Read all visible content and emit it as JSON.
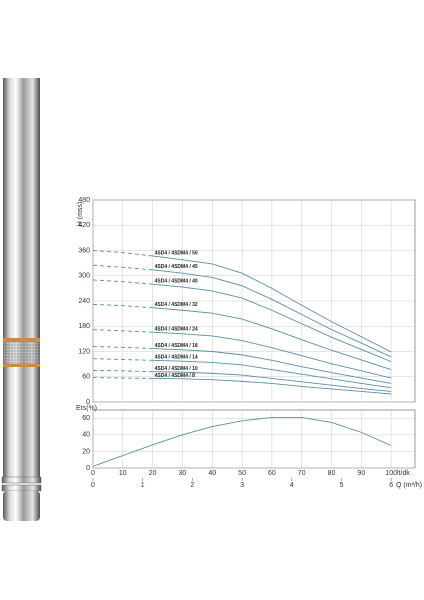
{
  "chart_data": [
    {
      "type": "line",
      "y_label": "H (mss)",
      "x": [
        0,
        10,
        20,
        30,
        40,
        50,
        60,
        70,
        80,
        90,
        100
      ],
      "xlim": [
        0,
        108
      ],
      "ylim": [
        0,
        480
      ],
      "yticks": [
        0,
        60,
        120,
        180,
        240,
        300,
        360,
        420,
        480
      ],
      "grid": true,
      "color": "#5b8ea6",
      "series": [
        {
          "name": "4SD4 / 4SDM4 / 50",
          "values": [
            360,
            355,
            347,
            338,
            328,
            306,
            270,
            230,
            191,
            155,
            119
          ]
        },
        {
          "name": "4SD4 / 4SDM4 / 45",
          "values": [
            325,
            320,
            314,
            306,
            296,
            276,
            244,
            208,
            172,
            140,
            107
          ]
        },
        {
          "name": "4SD4 / 4SDM4 / 40",
          "values": [
            290,
            286,
            280,
            273,
            264,
            247,
            218,
            186,
            154,
            125,
            96
          ]
        },
        {
          "name": "4SD4 / 4SDM4 / 32",
          "values": [
            232,
            229,
            224,
            218,
            211,
            197,
            174,
            148,
            123,
            100,
            77
          ]
        },
        {
          "name": "4SD4 / 4SDM4 / 24",
          "values": [
            172,
            169,
            166,
            162,
            157,
            146,
            129,
            110,
            91,
            74,
            57
          ]
        },
        {
          "name": "4SD4 / 4SDM4 / 18",
          "values": [
            132,
            130,
            127,
            124,
            120,
            112,
            99,
            84,
            70,
            57,
            44
          ]
        },
        {
          "name": "4SD4 / 4SDM4 / 14",
          "values": [
            103,
            101,
            99,
            97,
            94,
            88,
            77,
            66,
            55,
            44,
            34
          ]
        },
        {
          "name": "4SD4 / 4SDM4 / 10",
          "values": [
            75,
            74,
            72,
            71,
            68,
            64,
            56,
            48,
            40,
            32,
            25
          ]
        },
        {
          "name": "4SD4 / 4SDM4 / 8",
          "values": [
            58,
            57,
            56,
            55,
            53,
            49,
            44,
            37,
            31,
            25,
            19
          ]
        }
      ]
    },
    {
      "type": "line",
      "y_label": "Ets(%)",
      "x_label": "lt/dk",
      "x2_label": "Q (m³/h)",
      "x": [
        0,
        10,
        20,
        30,
        40,
        50,
        60,
        70,
        80,
        90,
        100
      ],
      "values": [
        2,
        15,
        28,
        40,
        50,
        57,
        61,
        61,
        55,
        43,
        27
      ],
      "xlim": [
        0,
        108
      ],
      "xticks": [
        0,
        10,
        20,
        30,
        40,
        50,
        60,
        70,
        80,
        90,
        100
      ],
      "x2lim": [
        0,
        6.48
      ],
      "x2ticks": [
        0,
        1,
        2,
        3,
        4,
        5,
        6
      ],
      "ylim": [
        0,
        70
      ],
      "yticks": [
        0,
        20,
        40,
        60
      ],
      "grid": true,
      "color": "#5b8ea6"
    }
  ]
}
